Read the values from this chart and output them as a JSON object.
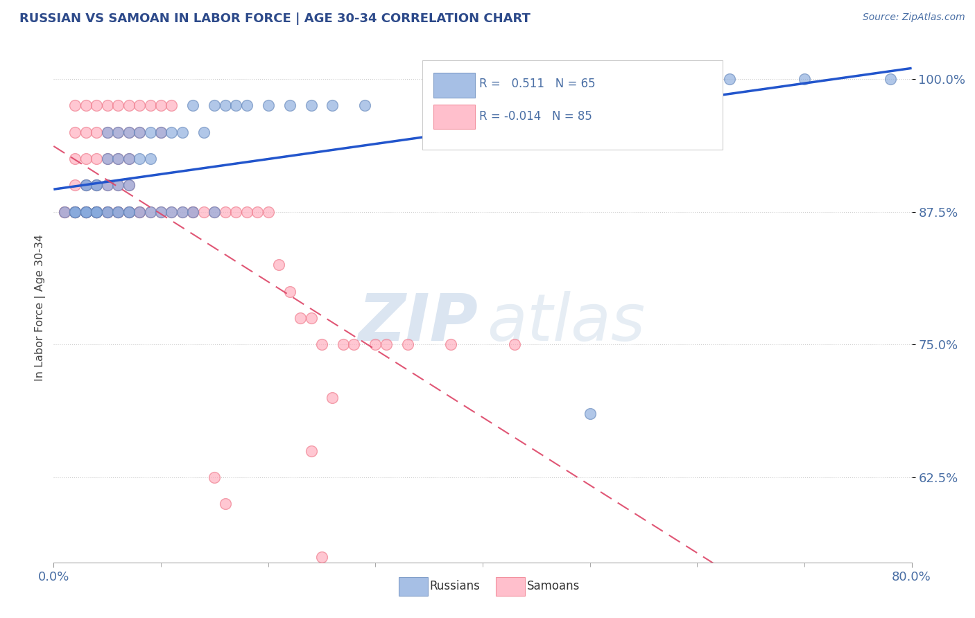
{
  "title": "RUSSIAN VS SAMOAN IN LABOR FORCE | AGE 30-34 CORRELATION CHART",
  "source_text": "Source: ZipAtlas.com",
  "ylabel": "In Labor Force | Age 30-34",
  "xlim": [
    0.0,
    0.8
  ],
  "ylim": [
    0.545,
    1.025
  ],
  "ytick_labels": [
    "62.5%",
    "75.0%",
    "87.5%",
    "100.0%"
  ],
  "ytick_values": [
    0.625,
    0.75,
    0.875,
    1.0
  ],
  "title_color": "#2d4a8a",
  "axis_color": "#4a6fa5",
  "source_color": "#4a6fa5",
  "legend_r_blue": "0.511",
  "legend_n_blue": "65",
  "legend_r_pink": "-0.014",
  "legend_n_pink": "85",
  "blue_color": "#88aadd",
  "blue_edge": "#6688bb",
  "pink_color": "#ffaabb",
  "pink_edge": "#ee7788",
  "trend_blue_color": "#2255cc",
  "trend_pink_color": "#dd4466",
  "watermark_zip": "ZIP",
  "watermark_atlas": "atlas",
  "russians_x": [
    0.01,
    0.02,
    0.02,
    0.02,
    0.02,
    0.03,
    0.03,
    0.03,
    0.03,
    0.03,
    0.03,
    0.04,
    0.04,
    0.04,
    0.04,
    0.04,
    0.04,
    0.04,
    0.05,
    0.05,
    0.05,
    0.05,
    0.05,
    0.06,
    0.06,
    0.06,
    0.06,
    0.06,
    0.07,
    0.07,
    0.07,
    0.07,
    0.07,
    0.08,
    0.08,
    0.08,
    0.09,
    0.09,
    0.09,
    0.1,
    0.1,
    0.11,
    0.11,
    0.12,
    0.12,
    0.13,
    0.13,
    0.14,
    0.15,
    0.15,
    0.16,
    0.17,
    0.18,
    0.2,
    0.22,
    0.24,
    0.26,
    0.29,
    0.35,
    0.44,
    0.5,
    0.54,
    0.63,
    0.7,
    0.78
  ],
  "russians_y": [
    0.875,
    0.875,
    0.875,
    0.875,
    0.875,
    0.9,
    0.9,
    0.875,
    0.875,
    0.875,
    0.875,
    0.9,
    0.9,
    0.875,
    0.875,
    0.875,
    0.875,
    0.875,
    0.95,
    0.925,
    0.9,
    0.875,
    0.875,
    0.95,
    0.925,
    0.9,
    0.875,
    0.875,
    0.95,
    0.925,
    0.9,
    0.875,
    0.875,
    0.95,
    0.925,
    0.875,
    0.95,
    0.925,
    0.875,
    0.95,
    0.875,
    0.95,
    0.875,
    0.95,
    0.875,
    0.975,
    0.875,
    0.95,
    0.975,
    0.875,
    0.975,
    0.975,
    0.975,
    0.975,
    0.975,
    0.975,
    0.975,
    0.975,
    1.0,
    1.0,
    0.685,
    1.0,
    1.0,
    1.0,
    1.0
  ],
  "samoans_x": [
    0.01,
    0.01,
    0.02,
    0.02,
    0.02,
    0.02,
    0.02,
    0.02,
    0.02,
    0.02,
    0.03,
    0.03,
    0.03,
    0.03,
    0.03,
    0.03,
    0.03,
    0.03,
    0.04,
    0.04,
    0.04,
    0.04,
    0.04,
    0.04,
    0.04,
    0.04,
    0.04,
    0.05,
    0.05,
    0.05,
    0.05,
    0.05,
    0.05,
    0.05,
    0.06,
    0.06,
    0.06,
    0.06,
    0.06,
    0.06,
    0.06,
    0.07,
    0.07,
    0.07,
    0.07,
    0.07,
    0.07,
    0.08,
    0.08,
    0.08,
    0.08,
    0.09,
    0.09,
    0.1,
    0.1,
    0.1,
    0.11,
    0.11,
    0.12,
    0.13,
    0.13,
    0.14,
    0.15,
    0.16,
    0.17,
    0.18,
    0.19,
    0.2,
    0.21,
    0.22,
    0.23,
    0.24,
    0.25,
    0.27,
    0.28,
    0.3,
    0.31,
    0.33,
    0.37,
    0.43,
    0.15,
    0.16,
    0.24,
    0.25,
    0.26
  ],
  "samoans_y": [
    0.875,
    0.875,
    0.975,
    0.95,
    0.925,
    0.9,
    0.875,
    0.875,
    0.875,
    0.875,
    0.975,
    0.95,
    0.925,
    0.9,
    0.875,
    0.875,
    0.875,
    0.875,
    0.975,
    0.95,
    0.925,
    0.9,
    0.875,
    0.875,
    0.875,
    0.875,
    0.875,
    0.975,
    0.95,
    0.925,
    0.9,
    0.875,
    0.875,
    0.875,
    0.975,
    0.95,
    0.925,
    0.9,
    0.875,
    0.875,
    0.875,
    0.975,
    0.95,
    0.925,
    0.9,
    0.875,
    0.875,
    0.975,
    0.95,
    0.875,
    0.875,
    0.975,
    0.875,
    0.975,
    0.95,
    0.875,
    0.975,
    0.875,
    0.875,
    0.875,
    0.875,
    0.875,
    0.875,
    0.875,
    0.875,
    0.875,
    0.875,
    0.875,
    0.825,
    0.8,
    0.775,
    0.775,
    0.75,
    0.75,
    0.75,
    0.75,
    0.75,
    0.75,
    0.75,
    0.75,
    0.625,
    0.6,
    0.65,
    0.55,
    0.7
  ]
}
